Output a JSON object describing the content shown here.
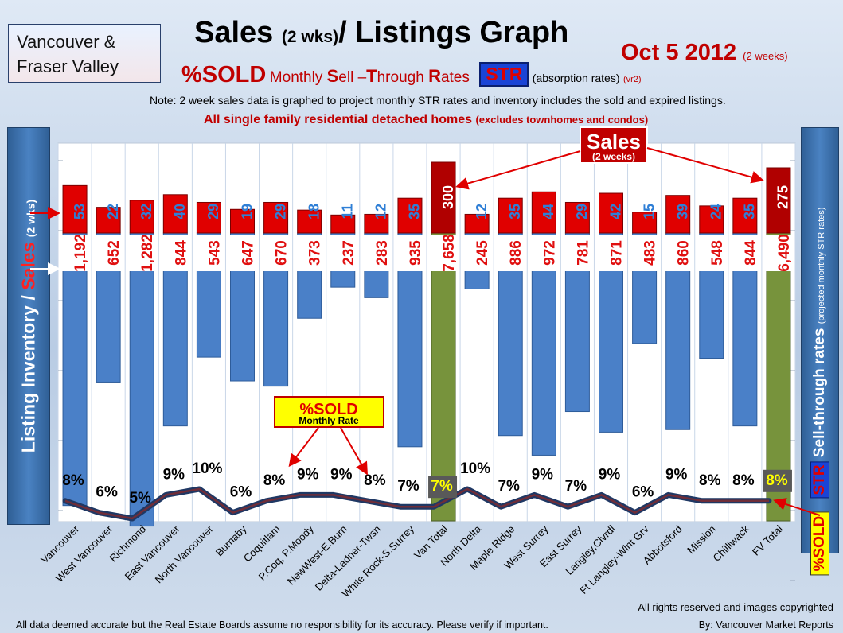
{
  "header": {
    "region_line1": "Vancouver &",
    "region_line2": "Fraser Valley",
    "title_main": "Sales",
    "title_small": "(2 wks)",
    "title_rest": "/ Listings Graph",
    "date": "Oct 5 2012",
    "date_note": "(2 weeks)",
    "pct_sold": "%SOLD",
    "monthly_prefix": "Monthly",
    "sell_s": "S",
    "sell_rest": "ell –",
    "through_t": "T",
    "through_rest": "hrough",
    "rates_r": "R",
    "rates_rest": "ates",
    "str_badge": "STR",
    "absorption": "(absorption rates)",
    "version": "(vr2)",
    "note": "Note: 2 week sales data is graphed to project monthly STR rates and inventory includes the sold and expired listings.",
    "scope_main": "All single family residential detached homes",
    "scope_small": "(excludes townhomes and condos)"
  },
  "left_axis": {
    "inventory": "Listing Inventory /",
    "sales": "Sales",
    "small": "(2 wks)"
  },
  "right_axis": {
    "pct_sold": "%SOLD",
    "str": "STR",
    "main": "Sell-through rates",
    "small": "(projected monthly STR rates)"
  },
  "callouts": {
    "sales_title": "Sales",
    "sales_sub": "(2 weeks)",
    "pct_title": "%SOLD",
    "pct_sub": "Monthly Rate"
  },
  "footer": {
    "rights": "All rights reserved and  images copyrighted",
    "disclaimer": "All data deemed accurate but the Real Estate Boards assume no responsibility for its accuracy.  Please verify if important.",
    "byline": "By: Vancouver Market Reports"
  },
  "colors": {
    "listing_bar": "#4a80c8",
    "total_bar": "#77933c",
    "sales_bar": "#e00000",
    "total_sales_bar": "#b00000",
    "label_red": "#e01010",
    "sales_label_blue": "#2f7fd6",
    "str_line": "#1f3864",
    "str_line_high": "#8b2a2a",
    "total_pct_box": "#595959",
    "total_pct_text": "#ffff00"
  },
  "chart_data": {
    "type": "bar",
    "categories": [
      "Vancouver",
      "West Vancouver",
      "Richmond",
      "East Vancouver",
      "North Vancouver",
      "Burnaby",
      "Coquitlam",
      "P.Coq, P.Moody",
      "NewWest-E.Burn",
      "Delta-Ladner-Twsn",
      "White Rock-S.Surrey",
      "Van Total",
      "North Delta",
      "Maple Ridge",
      "West Surrey",
      "East Surrey",
      "Langley,Clvrdl",
      "Ft Langley-Wlnt Grv",
      "Abbotsford",
      "Mission",
      "Chilliwack",
      "FV Total"
    ],
    "is_total": [
      false,
      false,
      false,
      false,
      false,
      false,
      false,
      false,
      false,
      false,
      false,
      true,
      false,
      false,
      false,
      false,
      false,
      false,
      false,
      false,
      false,
      true
    ],
    "series": [
      {
        "name": "Listing Inventory",
        "values": [
          1192,
          652,
          1282,
          844,
          543,
          647,
          670,
          373,
          237,
          283,
          935,
          7658,
          245,
          886,
          972,
          781,
          871,
          483,
          860,
          548,
          844,
          6490
        ]
      },
      {
        "name": "Sales",
        "values": [
          53,
          22,
          32,
          40,
          29,
          19,
          29,
          18,
          11,
          12,
          35,
          300,
          12,
          35,
          44,
          29,
          42,
          15,
          39,
          24,
          35,
          275
        ]
      },
      {
        "name": "%SOLD",
        "values": [
          8,
          6,
          5,
          9,
          10,
          6,
          8,
          9,
          9,
          8,
          7,
          7,
          10,
          7,
          9,
          7,
          9,
          6,
          9,
          8,
          8,
          8
        ]
      }
    ],
    "inventory_labels": [
      "1,192",
      "652",
      "1,282",
      "844",
      "543",
      "647",
      "670",
      "373",
      "237",
      "283",
      "935",
      "7,658",
      "245",
      "886",
      "972",
      "781",
      "871",
      "483",
      "860",
      "548",
      "844",
      "6,490"
    ],
    "pct_labels": [
      "8%",
      "6%",
      "5%",
      "9%",
      "10%",
      "6%",
      "8%",
      "9%",
      "9%",
      "8%",
      "7%",
      "7%",
      "10%",
      "7%",
      "9%",
      "7%",
      "9%",
      "6%",
      "9%",
      "8%",
      "8%",
      "8%"
    ],
    "grid": true,
    "legend": "none"
  }
}
